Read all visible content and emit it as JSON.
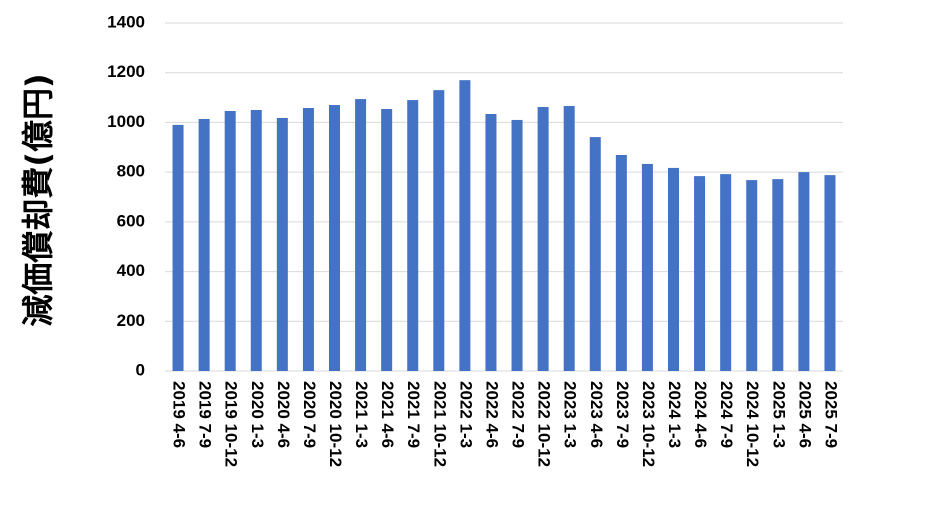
{
  "chart_data": {
    "type": "bar",
    "y_label": "減価償却費(億円)",
    "categories": [
      "2019 4-6",
      "2019 7-9",
      "2019 10-12",
      "2020 1-3",
      "2020 4-6",
      "2020 7-9",
      "2020 10-12",
      "2021 1-3",
      "2021 4-6",
      "2021 7-9",
      "2021 10-12",
      "2022 1-3",
      "2022 4-6",
      "2022 7-9",
      "2022 10-12",
      "2023 1-3",
      "2023 4-6",
      "2023 7-9",
      "2023 10-12",
      "2024 1-3",
      "2024 4-6",
      "2024 7-9",
      "2024 10-12",
      "2025 1-3",
      "2025 4-6",
      "2025 7-9"
    ],
    "values": [
      990,
      1014,
      1046,
      1050,
      1018,
      1058,
      1070,
      1094,
      1054,
      1090,
      1130,
      1170,
      1034,
      1010,
      1062,
      1066,
      941,
      869,
      833,
      817,
      784,
      792,
      768,
      772,
      800,
      788
    ],
    "color": "#4472c4",
    "ylim": [
      0,
      1400
    ],
    "yticks": [
      0,
      200,
      400,
      600,
      800,
      1000,
      1200,
      1400
    ],
    "grid": true
  }
}
